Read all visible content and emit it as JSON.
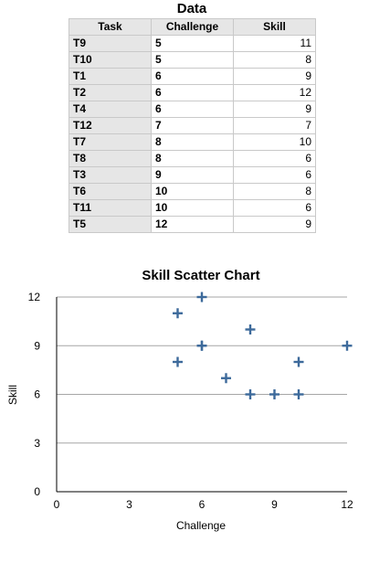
{
  "table": {
    "title": "Data",
    "headers": [
      "Task",
      "Challenge",
      "Skill"
    ],
    "rows": [
      {
        "task": "T9",
        "challenge": "5",
        "skill": "11"
      },
      {
        "task": "T10",
        "challenge": "5",
        "skill": "8"
      },
      {
        "task": "T1",
        "challenge": "6",
        "skill": "9"
      },
      {
        "task": "T2",
        "challenge": "6",
        "skill": "12"
      },
      {
        "task": "T4",
        "challenge": "6",
        "skill": "9"
      },
      {
        "task": "T12",
        "challenge": "7",
        "skill": "7"
      },
      {
        "task": "T7",
        "challenge": "8",
        "skill": "10"
      },
      {
        "task": "T8",
        "challenge": "8",
        "skill": "6"
      },
      {
        "task": "T3",
        "challenge": "9",
        "skill": "6"
      },
      {
        "task": "T6",
        "challenge": "10",
        "skill": "8"
      },
      {
        "task": "T11",
        "challenge": "10",
        "skill": "6"
      },
      {
        "task": "T5",
        "challenge": "12",
        "skill": "9"
      }
    ]
  },
  "chart_data": {
    "type": "scatter",
    "title": "Skill Scatter Chart",
    "xlabel": "Challenge",
    "ylabel": "Skill",
    "xlim": [
      0,
      12
    ],
    "ylim": [
      0,
      12
    ],
    "xticks": [
      0,
      3,
      6,
      9,
      12
    ],
    "yticks": [
      0,
      3,
      6,
      9,
      12
    ],
    "grid": "horizontal",
    "marker": "plus",
    "marker_color": "#3d6a9b",
    "points": [
      {
        "x": 5,
        "y": 11
      },
      {
        "x": 5,
        "y": 8
      },
      {
        "x": 6,
        "y": 9
      },
      {
        "x": 6,
        "y": 12
      },
      {
        "x": 6,
        "y": 9
      },
      {
        "x": 7,
        "y": 7
      },
      {
        "x": 8,
        "y": 10
      },
      {
        "x": 8,
        "y": 6
      },
      {
        "x": 9,
        "y": 6
      },
      {
        "x": 10,
        "y": 8
      },
      {
        "x": 10,
        "y": 6
      },
      {
        "x": 12,
        "y": 9
      }
    ]
  }
}
